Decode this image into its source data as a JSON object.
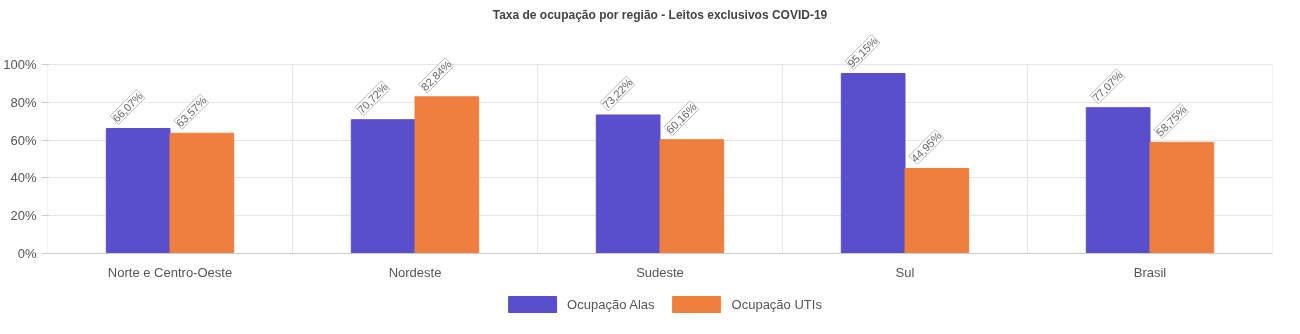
{
  "chart_data": {
    "type": "bar",
    "title": "Taxa de ocupação por região - Leitos exclusivos COVID-19",
    "categories": [
      "Norte e Centro-Oeste",
      "Nordeste",
      "Sudeste",
      "Sul",
      "Brasil"
    ],
    "series": [
      {
        "name": "Ocupação Alas",
        "color": "#594fcc",
        "values": [
          66.07,
          70.72,
          73.22,
          95.15,
          77.07
        ],
        "value_labels": [
          "66,07%",
          "70,72%",
          "73,22%",
          "95,15%",
          "77,07%"
        ]
      },
      {
        "name": "Ocupação UTIs",
        "color": "#ee7f3e",
        "values": [
          63.57,
          82.84,
          60.16,
          44.95,
          58.75
        ],
        "value_labels": [
          "63,57%",
          "82,84%",
          "60,16%",
          "44,95%",
          "58,75%"
        ]
      }
    ],
    "ylim": [
      0,
      100
    ],
    "yticks": [
      {
        "value": 0,
        "label": "0%"
      },
      {
        "value": 20,
        "label": "20%"
      },
      {
        "value": 40,
        "label": "40%"
      },
      {
        "value": 60,
        "label": "60%"
      },
      {
        "value": 80,
        "label": "80%"
      },
      {
        "value": 100,
        "label": "100%"
      }
    ],
    "grid": true,
    "legend": "bottom"
  }
}
